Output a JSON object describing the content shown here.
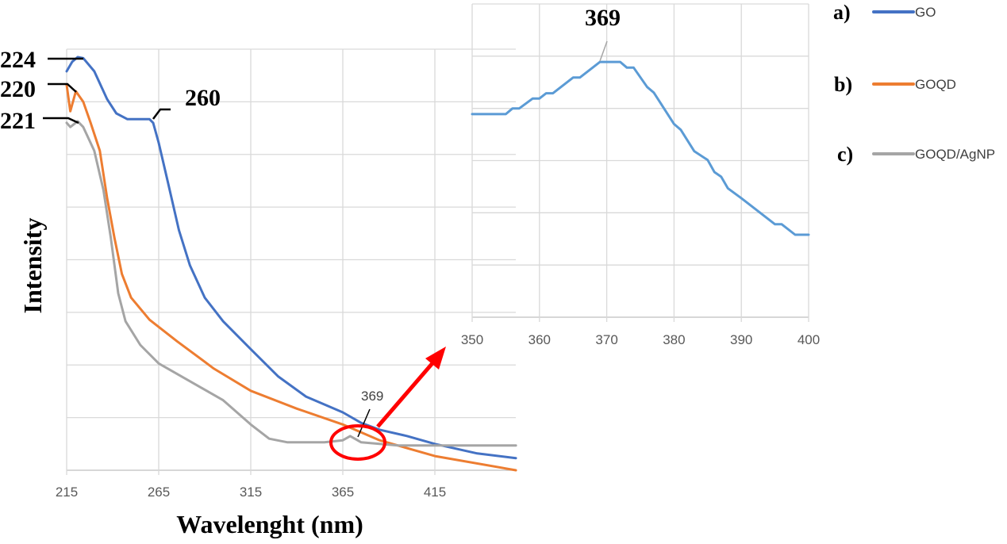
{
  "chart_data": [
    {
      "type": "line",
      "title": "",
      "xlabel": "Wavelenght (nm)",
      "ylabel": "Intensity",
      "xlim": [
        215,
        459
      ],
      "ylim": [
        0,
        8
      ],
      "xticks": [
        215,
        265,
        315,
        365,
        415
      ],
      "grid": true,
      "series": [
        {
          "name": "GO",
          "color": "#4472c4",
          "x": [
            215,
            218,
            221,
            224,
            230,
            237,
            242,
            248,
            255,
            260,
            262,
            265,
            270,
            276,
            282,
            287,
            290,
            300,
            315,
            330,
            345,
            365,
            375,
            385,
            400,
            415,
            438,
            459
          ],
          "y": [
            7.58,
            7.76,
            7.85,
            7.83,
            7.58,
            7.05,
            6.78,
            6.67,
            6.67,
            6.67,
            6.6,
            6.22,
            5.47,
            4.56,
            3.89,
            3.51,
            3.28,
            2.83,
            2.3,
            1.78,
            1.4,
            1.1,
            0.9,
            0.77,
            0.65,
            0.5,
            0.32,
            0.23
          ]
        },
        {
          "name": "GOQD",
          "color": "#ed7d31",
          "x": [
            215,
            217,
            220,
            224,
            228,
            233,
            237,
            241,
            245,
            250,
            260,
            275,
            295,
            315,
            340,
            365,
            385,
            415,
            459
          ],
          "y": [
            7.32,
            6.82,
            7.2,
            7.0,
            6.6,
            6.07,
            5.17,
            4.41,
            3.73,
            3.28,
            2.86,
            2.45,
            1.93,
            1.51,
            1.17,
            0.87,
            0.57,
            0.27,
            0.0
          ]
        },
        {
          "name": "GOQD/AgNP",
          "color": "#a5a5a5",
          "x": [
            215,
            217,
            221,
            224,
            230,
            235,
            239,
            243,
            247,
            255,
            265,
            285,
            300,
            315,
            325,
            335,
            355,
            365,
            369,
            375,
            395,
            459
          ],
          "y": [
            6.6,
            6.52,
            6.63,
            6.52,
            6.07,
            5.32,
            4.41,
            3.36,
            2.83,
            2.38,
            2.03,
            1.63,
            1.33,
            0.87,
            0.6,
            0.53,
            0.53,
            0.57,
            0.65,
            0.53,
            0.47,
            0.47
          ]
        }
      ],
      "annotations": [
        "224",
        "220",
        "221",
        "260",
        "369"
      ],
      "legend": {
        "position": "right",
        "labels": [
          "a)",
          "b)",
          "c)"
        ]
      }
    },
    {
      "type": "line",
      "title": "",
      "xlabel": "",
      "ylabel": "",
      "xlim": [
        350,
        400
      ],
      "ylim": [
        0,
        6
      ],
      "xticks": [
        350,
        360,
        370,
        380,
        390,
        400
      ],
      "grid": true,
      "series": [
        {
          "name": "GOQD/AgNP (zoom)",
          "color": "#5b9bd5",
          "x": [
            350,
            355,
            356,
            357,
            359,
            360,
            361,
            362,
            365,
            366,
            369,
            372,
            373,
            374,
            376,
            377,
            380,
            381,
            383,
            385,
            386,
            387,
            388,
            390,
            395,
            396,
            398,
            400
          ],
          "y": [
            3.89,
            3.89,
            4.0,
            4.0,
            4.19,
            4.19,
            4.29,
            4.29,
            4.59,
            4.59,
            4.89,
            4.89,
            4.78,
            4.78,
            4.41,
            4.3,
            3.7,
            3.59,
            3.18,
            3.01,
            2.78,
            2.69,
            2.47,
            2.28,
            1.78,
            1.78,
            1.58,
            1.58
          ]
        }
      ],
      "annotations": [
        "369"
      ]
    }
  ],
  "colors": {
    "highlight": "#ff0000"
  }
}
